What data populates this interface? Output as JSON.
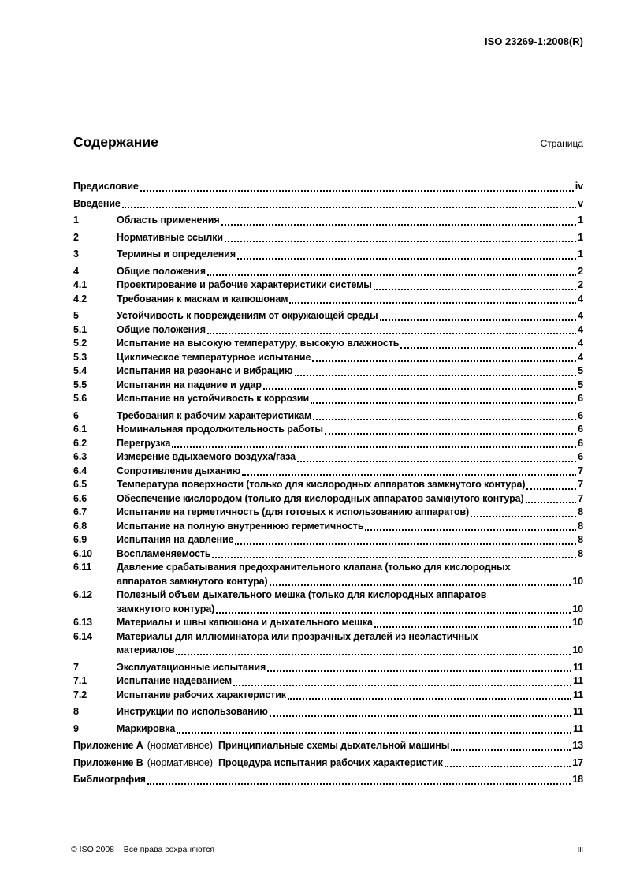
{
  "header": {
    "doc_ref": "ISO 23269-1:2008(R)"
  },
  "contents": {
    "title": "Содержание",
    "page_column_label": "Страница",
    "entries": [
      {
        "type": "front",
        "label": "Предисловие",
        "page": "iv",
        "gap": true
      },
      {
        "type": "front",
        "label": "Введение",
        "page": "v",
        "gap": true
      },
      {
        "type": "section",
        "num": "1",
        "label": "Область применения",
        "page": "1",
        "gap": true
      },
      {
        "type": "section",
        "num": "2",
        "label": "Нормативные ссылки",
        "page": "1",
        "gap": true
      },
      {
        "type": "section",
        "num": "3",
        "label": "Термины и определения",
        "page": "1",
        "gap": true
      },
      {
        "type": "section",
        "num": "4",
        "label": "Общие положения",
        "page": "2",
        "gap": true
      },
      {
        "type": "subsection",
        "num": "4.1",
        "label": "Проектирование и рабочие характеристики системы",
        "page": "2"
      },
      {
        "type": "subsection",
        "num": "4.2",
        "label": "Требования к маскам и капюшонам",
        "page": "4"
      },
      {
        "type": "section",
        "num": "5",
        "label": "Устойчивость к повреждениям от окружающей среды",
        "page": "4",
        "gap": true
      },
      {
        "type": "subsection",
        "num": "5.1",
        "label": "Общие положения",
        "page": "4"
      },
      {
        "type": "subsection",
        "num": "5.2",
        "label": "Испытание на высокую температуру, высокую влажность",
        "page": "4"
      },
      {
        "type": "subsection",
        "num": "5.3",
        "label": "Циклическое температурное испытание",
        "page": "4"
      },
      {
        "type": "subsection",
        "num": "5.4",
        "label": "Испытания на резонанс и вибрацию",
        "page": "5"
      },
      {
        "type": "subsection",
        "num": "5.5",
        "label": "Испытания на падение и удар",
        "page": "5"
      },
      {
        "type": "subsection",
        "num": "5.6",
        "label": "Испытание на устойчивость к коррозии",
        "page": "6"
      },
      {
        "type": "section",
        "num": "6",
        "label": "Требования к рабочим характеристикам",
        "page": "6",
        "gap": true
      },
      {
        "type": "subsection",
        "num": "6.1",
        "label": "Номинальная продолжительность работы",
        "page": "6"
      },
      {
        "type": "subsection",
        "num": "6.2",
        "label": "Перегрузка",
        "page": "6"
      },
      {
        "type": "subsection",
        "num": "6.3",
        "label": "Измерение вдыхаемого воздуха/газа",
        "page": "6"
      },
      {
        "type": "subsection",
        "num": "6.4",
        "label": "Сопротивление дыханию",
        "page": "7"
      },
      {
        "type": "subsection",
        "num": "6.5",
        "label": "Температура поверхности (только для кислородных аппаратов замкнутого контура)",
        "page": "7"
      },
      {
        "type": "subsection",
        "num": "6.6",
        "label": "Обеспечение кислородом (только для кислородных аппаратов замкнутого контура)",
        "page": "7"
      },
      {
        "type": "subsection",
        "num": "6.7",
        "label": "Испытание на герметичность (для готовых к использованию аппаратов)",
        "page": "8"
      },
      {
        "type": "subsection",
        "num": "6.8",
        "label": "Испытание на полную внутреннюю герметичность",
        "page": "8"
      },
      {
        "type": "subsection",
        "num": "6.9",
        "label": "Испытания на давление",
        "page": "8"
      },
      {
        "type": "subsection",
        "num": "6.10",
        "label": "Воспламеняемость",
        "page": "8"
      },
      {
        "type": "subsection",
        "num": "6.11",
        "label": "Давление срабатывания предохранительного клапана (только для кислородных",
        "label2": "аппаратов замкнутого контура)",
        "page": "10"
      },
      {
        "type": "subsection",
        "num": "6.12",
        "label": "Полезный объем дыхательного мешка (только для кислородных аппаратов",
        "label2": "замкнутого контура)",
        "page": "10"
      },
      {
        "type": "subsection",
        "num": "6.13",
        "label": "Материалы и швы капюшона и дыхательного мешка",
        "page": "10"
      },
      {
        "type": "subsection",
        "num": "6.14",
        "label": "Материалы для иллюминатора или прозрачных деталей из неэластичных",
        "label2": "материалов",
        "page": "10"
      },
      {
        "type": "section",
        "num": "7",
        "label": "Эксплуатационные испытания",
        "page": "11",
        "gap": true
      },
      {
        "type": "subsection",
        "num": "7.1",
        "label": "Испытание надеванием",
        "page": "11"
      },
      {
        "type": "subsection",
        "num": "7.2",
        "label": "Испытание рабочих характеристик",
        "page": "11"
      },
      {
        "type": "section",
        "num": "8",
        "label": "Инструкции по использованию",
        "page": "11",
        "gap": true
      },
      {
        "type": "section",
        "num": "9",
        "label": "Маркировка",
        "page": "11",
        "gap": true
      },
      {
        "type": "annex",
        "prefix": "Приложение A",
        "note": "(нормативное)",
        "label": "Принципиальные схемы дыхательной машины",
        "page": "13",
        "gap": true
      },
      {
        "type": "annex",
        "prefix": "Приложение B",
        "note": "(нормативное)",
        "label": "Процедура испытания рабочих характеристик",
        "page": "17",
        "gap": true
      },
      {
        "type": "front",
        "label": "Библиография",
        "page": "18",
        "gap": true
      }
    ]
  },
  "footer": {
    "copyright": "© ISO 2008 – Все права сохраняются",
    "page_number": "iii"
  }
}
